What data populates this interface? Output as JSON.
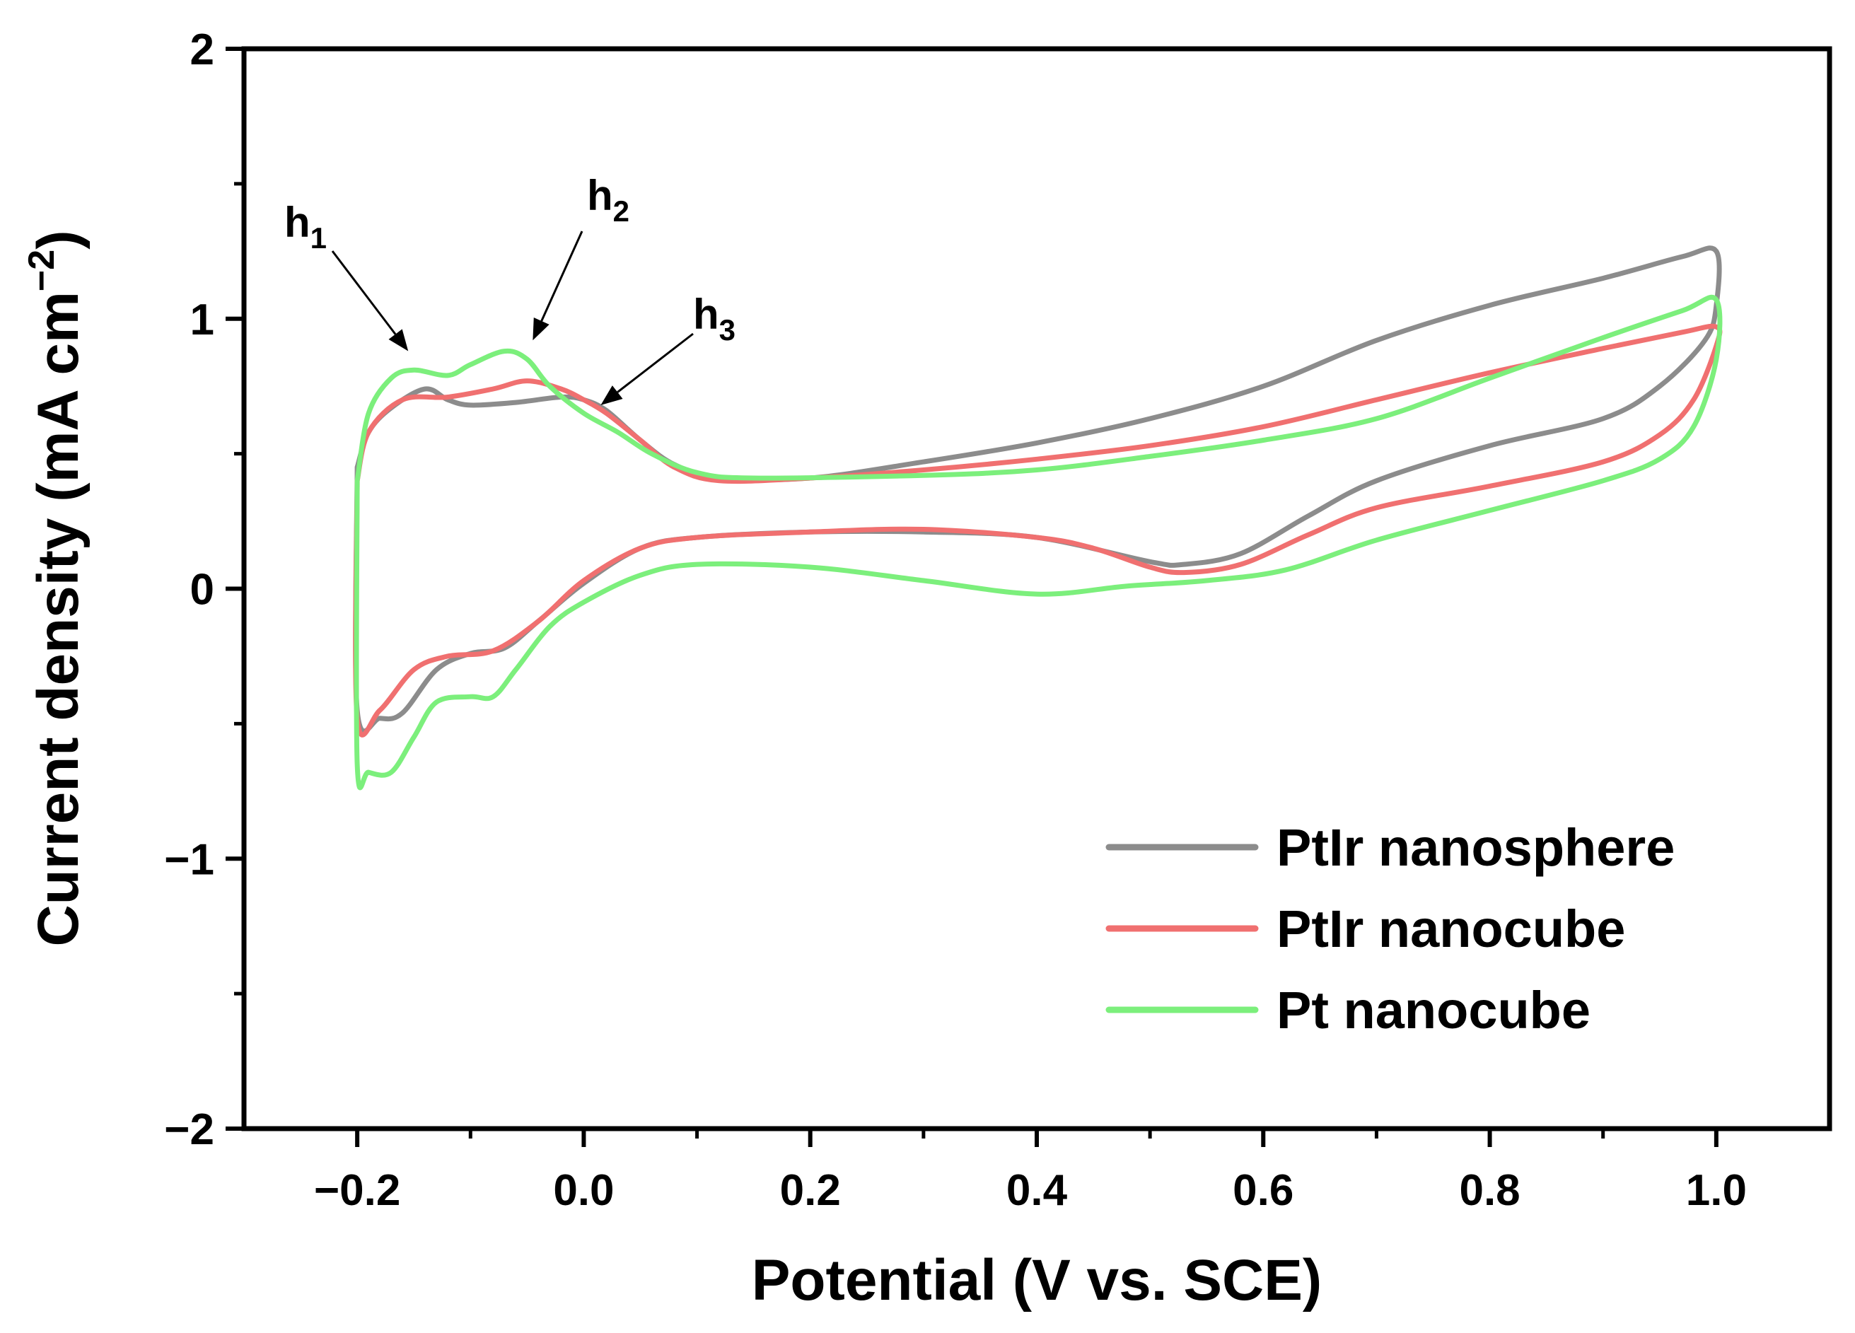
{
  "chart_data": {
    "type": "line",
    "title": "",
    "xlabel": "Potential (V vs. SCE)",
    "ylabel": "Current density (mA cm",
    "ylabel_sup": "−2",
    "ylabel_close": ")",
    "xlim": [
      -0.3,
      1.1
    ],
    "ylim": [
      -2,
      2
    ],
    "xticks": [
      {
        "value": -0.2,
        "label": "−0.2"
      },
      {
        "value": 0.0,
        "label": "0.0"
      },
      {
        "value": 0.2,
        "label": "0.2"
      },
      {
        "value": 0.4,
        "label": "0.4"
      },
      {
        "value": 0.6,
        "label": "0.6"
      },
      {
        "value": 0.8,
        "label": "0.8"
      },
      {
        "value": 1.0,
        "label": "1.0"
      }
    ],
    "yticks": [
      {
        "value": -2,
        "label": "−2"
      },
      {
        "value": -1,
        "label": "−1"
      },
      {
        "value": 0,
        "label": "0"
      },
      {
        "value": 1,
        "label": "1"
      },
      {
        "value": 2,
        "label": "2"
      }
    ],
    "legend_position": "bottom-right",
    "series": [
      {
        "name": "PtIr nanosphere",
        "color": "#8c8c8c",
        "points": [
          [
            -0.2,
            0.45
          ],
          [
            -0.19,
            0.58
          ],
          [
            -0.17,
            0.67
          ],
          [
            -0.14,
            0.74
          ],
          [
            -0.12,
            0.7
          ],
          [
            -0.1,
            0.68
          ],
          [
            -0.06,
            0.69
          ],
          [
            -0.02,
            0.71
          ],
          [
            0.0,
            0.7
          ],
          [
            0.02,
            0.66
          ],
          [
            0.05,
            0.55
          ],
          [
            0.08,
            0.46
          ],
          [
            0.12,
            0.41
          ],
          [
            0.2,
            0.41
          ],
          [
            0.3,
            0.47
          ],
          [
            0.4,
            0.54
          ],
          [
            0.5,
            0.63
          ],
          [
            0.6,
            0.75
          ],
          [
            0.7,
            0.92
          ],
          [
            0.8,
            1.05
          ],
          [
            0.9,
            1.15
          ],
          [
            0.97,
            1.23
          ],
          [
            1.0,
            1.25
          ],
          [
            1.0,
            1.05
          ],
          [
            0.99,
            0.92
          ],
          [
            0.95,
            0.75
          ],
          [
            0.9,
            0.63
          ],
          [
            0.8,
            0.53
          ],
          [
            0.7,
            0.4
          ],
          [
            0.64,
            0.27
          ],
          [
            0.58,
            0.13
          ],
          [
            0.53,
            0.09
          ],
          [
            0.5,
            0.1
          ],
          [
            0.4,
            0.19
          ],
          [
            0.3,
            0.21
          ],
          [
            0.2,
            0.21
          ],
          [
            0.1,
            0.19
          ],
          [
            0.05,
            0.15
          ],
          [
            0.0,
            0.02
          ],
          [
            -0.04,
            -0.12
          ],
          [
            -0.07,
            -0.22
          ],
          [
            -0.1,
            -0.24
          ],
          [
            -0.13,
            -0.3
          ],
          [
            -0.16,
            -0.46
          ],
          [
            -0.18,
            -0.48
          ],
          [
            -0.2,
            -0.45
          ],
          [
            -0.2,
            0.45
          ]
        ]
      },
      {
        "name": "PtIr nanocube",
        "color": "#f07070",
        "points": [
          [
            -0.2,
            0.4
          ],
          [
            -0.19,
            0.58
          ],
          [
            -0.16,
            0.7
          ],
          [
            -0.12,
            0.71
          ],
          [
            -0.08,
            0.74
          ],
          [
            -0.05,
            0.77
          ],
          [
            -0.02,
            0.74
          ],
          [
            0.0,
            0.7
          ],
          [
            0.02,
            0.65
          ],
          [
            0.05,
            0.55
          ],
          [
            0.08,
            0.45
          ],
          [
            0.12,
            0.4
          ],
          [
            0.2,
            0.41
          ],
          [
            0.3,
            0.44
          ],
          [
            0.4,
            0.48
          ],
          [
            0.5,
            0.53
          ],
          [
            0.6,
            0.6
          ],
          [
            0.7,
            0.7
          ],
          [
            0.8,
            0.8
          ],
          [
            0.9,
            0.89
          ],
          [
            0.97,
            0.95
          ],
          [
            1.0,
            0.97
          ],
          [
            1.0,
            0.9
          ],
          [
            0.98,
            0.7
          ],
          [
            0.95,
            0.57
          ],
          [
            0.9,
            0.47
          ],
          [
            0.8,
            0.38
          ],
          [
            0.7,
            0.3
          ],
          [
            0.64,
            0.2
          ],
          [
            0.58,
            0.09
          ],
          [
            0.53,
            0.06
          ],
          [
            0.5,
            0.08
          ],
          [
            0.45,
            0.15
          ],
          [
            0.4,
            0.19
          ],
          [
            0.3,
            0.22
          ],
          [
            0.2,
            0.21
          ],
          [
            0.1,
            0.19
          ],
          [
            0.05,
            0.15
          ],
          [
            0.0,
            0.03
          ],
          [
            -0.04,
            -0.12
          ],
          [
            -0.08,
            -0.23
          ],
          [
            -0.12,
            -0.25
          ],
          [
            -0.15,
            -0.3
          ],
          [
            -0.18,
            -0.45
          ],
          [
            -0.2,
            -0.48
          ],
          [
            -0.2,
            0.4
          ]
        ]
      },
      {
        "name": "Pt nanocube",
        "color": "#7cef7c",
        "points": [
          [
            -0.2,
            0.4
          ],
          [
            -0.19,
            0.65
          ],
          [
            -0.17,
            0.78
          ],
          [
            -0.15,
            0.81
          ],
          [
            -0.12,
            0.79
          ],
          [
            -0.1,
            0.83
          ],
          [
            -0.07,
            0.88
          ],
          [
            -0.05,
            0.85
          ],
          [
            -0.03,
            0.75
          ],
          [
            0.0,
            0.65
          ],
          [
            0.03,
            0.58
          ],
          [
            0.06,
            0.5
          ],
          [
            0.1,
            0.43
          ],
          [
            0.15,
            0.41
          ],
          [
            0.3,
            0.42
          ],
          [
            0.4,
            0.44
          ],
          [
            0.5,
            0.49
          ],
          [
            0.6,
            0.55
          ],
          [
            0.7,
            0.63
          ],
          [
            0.8,
            0.78
          ],
          [
            0.9,
            0.93
          ],
          [
            0.97,
            1.03
          ],
          [
            1.0,
            1.07
          ],
          [
            1.0,
            0.85
          ],
          [
            0.98,
            0.6
          ],
          [
            0.95,
            0.48
          ],
          [
            0.9,
            0.4
          ],
          [
            0.8,
            0.29
          ],
          [
            0.7,
            0.18
          ],
          [
            0.62,
            0.07
          ],
          [
            0.55,
            0.03
          ],
          [
            0.48,
            0.01
          ],
          [
            0.4,
            -0.02
          ],
          [
            0.3,
            0.03
          ],
          [
            0.2,
            0.08
          ],
          [
            0.1,
            0.09
          ],
          [
            0.05,
            0.05
          ],
          [
            0.0,
            -0.05
          ],
          [
            -0.03,
            -0.14
          ],
          [
            -0.06,
            -0.3
          ],
          [
            -0.08,
            -0.4
          ],
          [
            -0.1,
            -0.4
          ],
          [
            -0.13,
            -0.42
          ],
          [
            -0.15,
            -0.55
          ],
          [
            -0.17,
            -0.68
          ],
          [
            -0.19,
            -0.68
          ],
          [
            -0.2,
            -0.65
          ],
          [
            -0.2,
            0.4
          ]
        ]
      }
    ],
    "annotations": [
      {
        "text": "h",
        "sub": "1",
        "point_to": [
          -0.155,
          0.88
        ]
      },
      {
        "text": "h",
        "sub": "2",
        "point_to": [
          -0.045,
          0.92
        ]
      },
      {
        "text": "h",
        "sub": "3",
        "point_to": [
          0.015,
          0.68
        ]
      }
    ]
  }
}
